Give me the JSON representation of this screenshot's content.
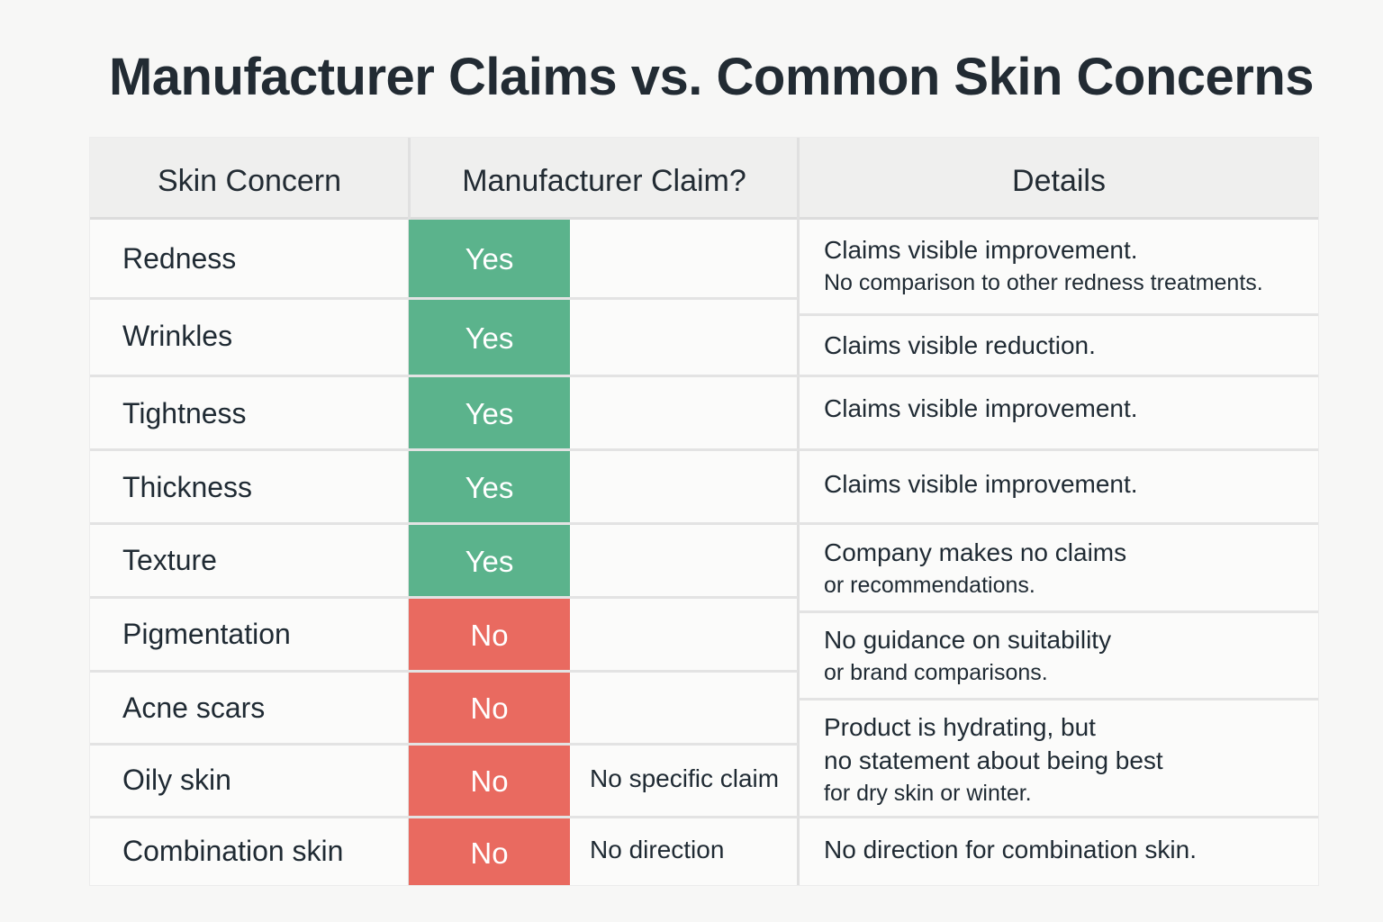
{
  "title": "Manufacturer Claims vs. Common Skin Concerns",
  "colors": {
    "yes": "#5bb38c",
    "no": "#e96a60"
  },
  "columns": [
    "Skin Concern",
    "Manufacturer Claim?",
    "Details"
  ],
  "rows": [
    {
      "concern": "Redness",
      "claim": "Yes",
      "note": ""
    },
    {
      "concern": "Wrinkles",
      "claim": "Yes",
      "note": ""
    },
    {
      "concern": "Tightness",
      "claim": "Yes",
      "note": ""
    },
    {
      "concern": "Thickness",
      "claim": "Yes",
      "note": ""
    },
    {
      "concern": "Texture",
      "claim": "Yes",
      "note": ""
    },
    {
      "concern": "Pigmentation",
      "claim": "No",
      "note": ""
    },
    {
      "concern": "Acne scars",
      "claim": "No",
      "note": ""
    },
    {
      "concern": "Oily skin",
      "claim": "No",
      "note": "No specific claim"
    },
    {
      "concern": "Combination skin",
      "claim": "No",
      "note": "No direction"
    }
  ],
  "details": [
    {
      "line1": "Claims visible improvement.",
      "line2": "No comparison to other redness treatments."
    },
    {
      "line1": "Claims visible reduction."
    },
    {
      "line1": "Claims visible improvement."
    },
    {
      "line1": "Claims visible improvement."
    },
    {
      "line1": "Company makes no claims",
      "line2": "or recommendations."
    },
    {
      "line1": "No guidance on suitability",
      "line2": "or brand comparisons."
    },
    {
      "line1": "Product is hydrating, but",
      "line2": "no statement about being best",
      "line3": "for dry skin or winter."
    },
    {
      "line1": "No direction for combination skin."
    }
  ]
}
